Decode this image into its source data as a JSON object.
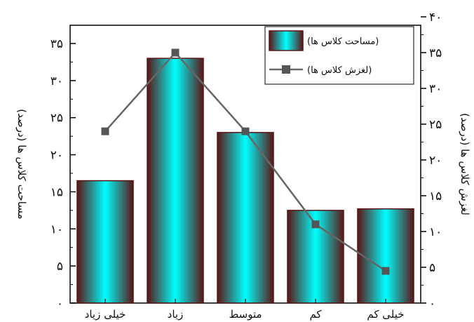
{
  "chart_data": {
    "type": "bar",
    "categories": [
      "خیلی زیاد",
      "زیاد",
      "متوسط",
      "کم",
      "خیلی کم"
    ],
    "series": [
      {
        "name": "(مساحت کلاس ها)",
        "kind": "bar",
        "axis": "left",
        "values": [
          16.5,
          33,
          23,
          12.5,
          12.7
        ]
      },
      {
        "name": "(لغزش کلاس ها)",
        "kind": "line",
        "axis": "right",
        "values": [
          24,
          35,
          24,
          11,
          4.5
        ]
      }
    ],
    "ylabel_left": "مساحت کلاس ها (درصد)",
    "ylabel_right": "لغزش کلاس ها (درصد)",
    "ylim_left": [
      0,
      35
    ],
    "ylim_right": [
      0,
      40
    ],
    "yticks_left": [
      "۰",
      "۵",
      "۱۰",
      "۱۵",
      "۲۰",
      "۲۵",
      "۳۰",
      "۳۵"
    ],
    "yticks_right": [
      "۰",
      "۵",
      "۱۰",
      "۱۵",
      "۲۰",
      "۲۵",
      "۳۰",
      "۳۵",
      "۴۰"
    ],
    "legend_position": "top-right",
    "grid": false,
    "colors": {
      "bar_center": "#00ffff",
      "bar_edge": "#5a1515",
      "line": "#666666",
      "marker": "#555555"
    }
  }
}
